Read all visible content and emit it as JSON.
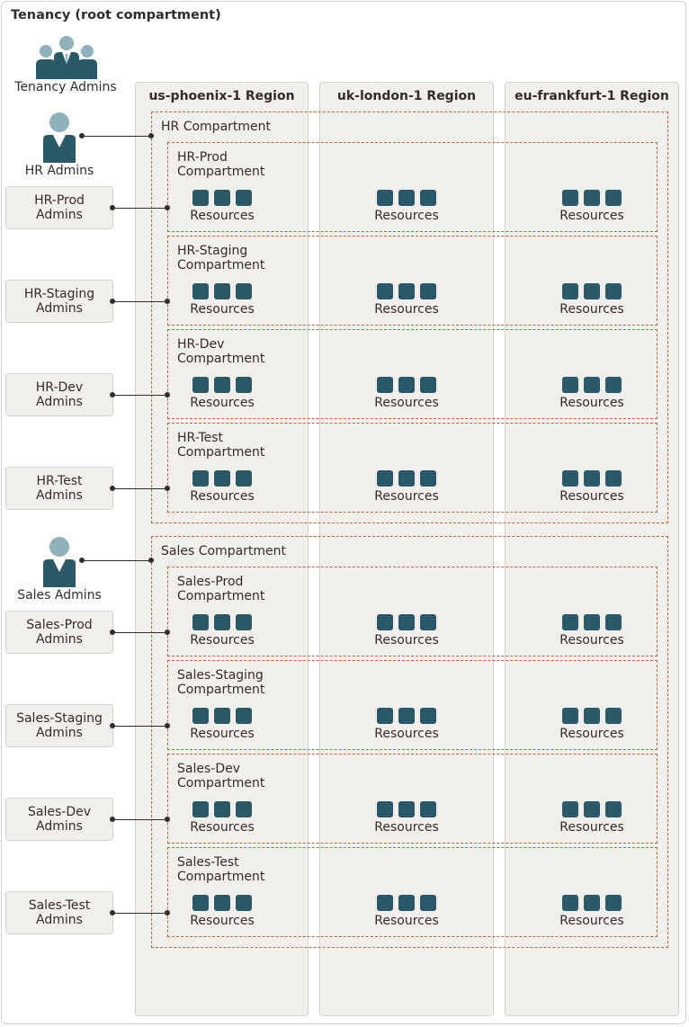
{
  "tenancy": {
    "title": "Tenancy (root compartment)",
    "admins_label": "Tenancy Admins"
  },
  "regions": [
    {
      "name": "us-phoenix-1 Region"
    },
    {
      "name": "uk-london-1 Region"
    },
    {
      "name": "eu-frankfurt-1 Region"
    }
  ],
  "resources_label": "Resources",
  "groups": [
    {
      "compartment_title": "HR Compartment",
      "admins_label": "HR Admins",
      "subs": [
        {
          "title_line1": "HR-Prod",
          "title_line2": "Compartment",
          "admin_line1": "HR-Prod",
          "admin_line2": "Admins"
        },
        {
          "title_line1": "HR-Staging",
          "title_line2": "Compartment",
          "admin_line1": "HR-Staging",
          "admin_line2": "Admins"
        },
        {
          "title_line1": "HR-Dev",
          "title_line2": "Compartment",
          "admin_line1": "HR-Dev",
          "admin_line2": "Admins"
        },
        {
          "title_line1": "HR-Test",
          "title_line2": "Compartment",
          "admin_line1": "HR-Test",
          "admin_line2": "Admins"
        }
      ]
    },
    {
      "compartment_title": "Sales Compartment",
      "admins_label": "Sales Admins",
      "subs": [
        {
          "title_line1": "Sales-Prod",
          "title_line2": "Compartment",
          "admin_line1": "Sales-Prod",
          "admin_line2": "Admins"
        },
        {
          "title_line1": "Sales-Staging",
          "title_line2": "Compartment",
          "admin_line1": "Sales-Staging",
          "admin_line2": "Admins"
        },
        {
          "title_line1": "Sales-Dev",
          "title_line2": "Compartment",
          "admin_line1": "Sales-Dev",
          "admin_line2": "Admins"
        },
        {
          "title_line1": "Sales-Test",
          "title_line2": "Compartment",
          "admin_line1": "Sales-Test",
          "admin_line2": "Admins"
        }
      ]
    }
  ],
  "colors": {
    "resource_square": "#2c5967",
    "dashed_border": "#c8643f",
    "region_fill": "#f1efeb",
    "person_head_light": "#8fb1bb",
    "person_body_dark": "#2c5967",
    "text": "#312d2a"
  },
  "icons": {
    "group": "user-group-icon",
    "person": "person-icon",
    "resource": "resource-square-icon"
  }
}
